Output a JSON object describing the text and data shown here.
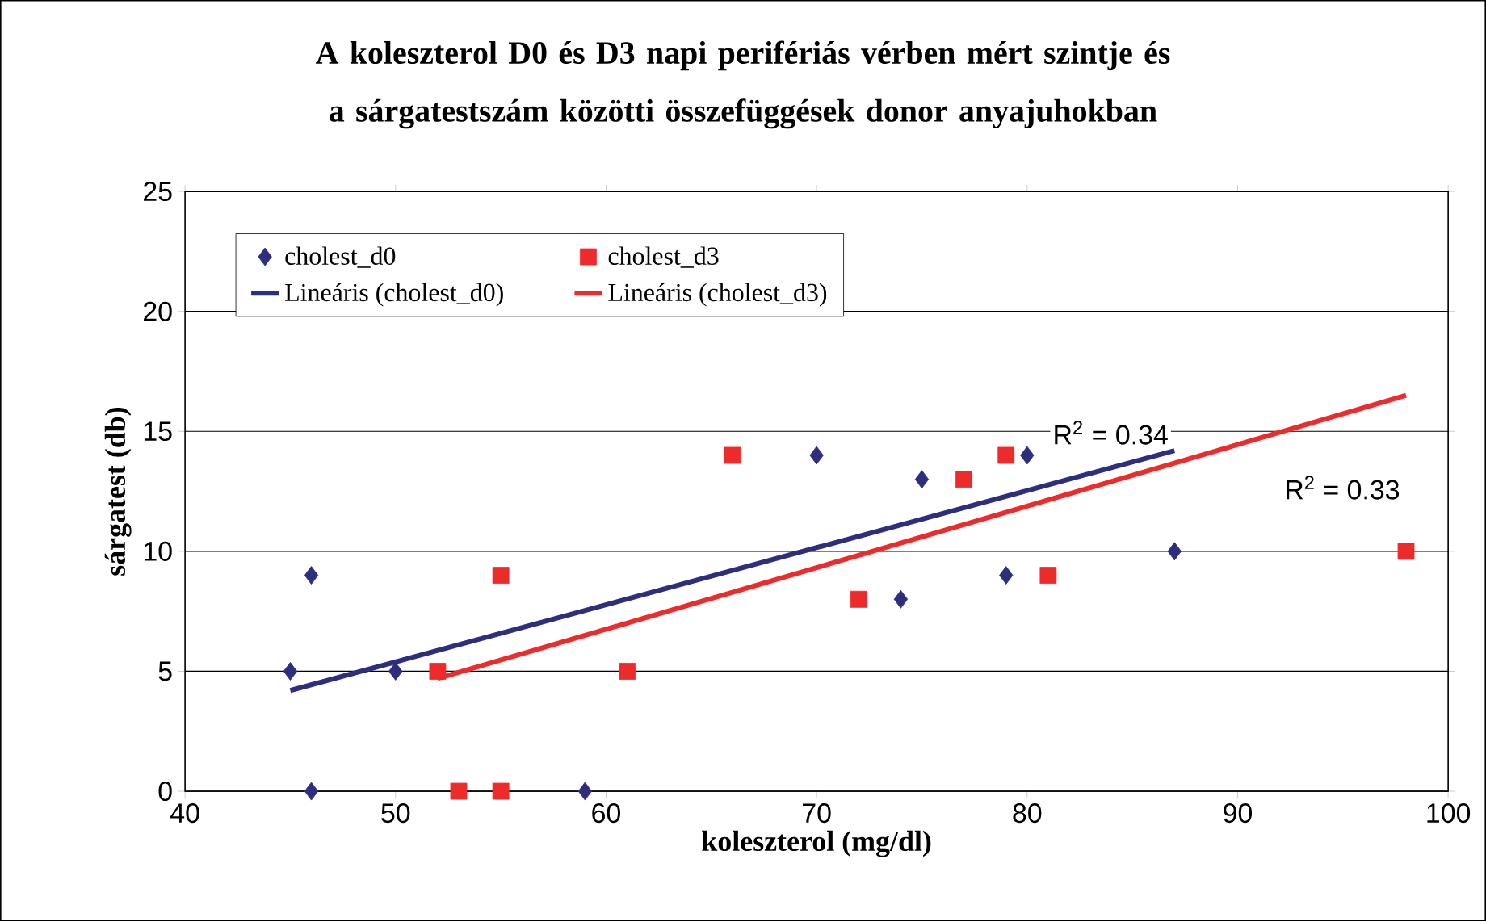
{
  "chart_data": {
    "type": "scatter",
    "title": "A koleszterol D0 és D3 napi perifériás vérben mért szintje és a sárgatestszám közötti összefüggések donor anyajuhokban",
    "xlabel": "koleszterol (mg/dl)",
    "ylabel": "sárgatest (db)",
    "xlim": [
      40,
      100
    ],
    "xticks": [
      40,
      50,
      60,
      70,
      80,
      90,
      100
    ],
    "ylim": [
      0,
      25
    ],
    "yticks": [
      0,
      5,
      10,
      15,
      20,
      25
    ],
    "grid": "y",
    "legend": "top left",
    "series": [
      {
        "name": "cholest_d0",
        "marker": "diamond",
        "color": "#2e2e7f",
        "x": [
          45,
          46,
          46,
          50,
          59,
          70,
          74,
          75,
          79,
          80,
          87
        ],
        "values": [
          5,
          9,
          0,
          5,
          0,
          14,
          8,
          13,
          9,
          14,
          10
        ]
      },
      {
        "name": "cholest_d3",
        "marker": "square",
        "color": "#ee2b2b",
        "x": [
          52,
          53,
          55,
          55,
          61,
          66,
          72,
          77,
          79,
          81,
          98
        ],
        "values": [
          5,
          0,
          0,
          9,
          5,
          14,
          8,
          13,
          14,
          9,
          10
        ]
      },
      {
        "name": "Lineáris (cholest_d0)",
        "type": "line",
        "marker": "none",
        "color": "#2e2e7f",
        "x": [
          45,
          87
        ],
        "values": [
          4.2,
          14.2
        ]
      },
      {
        "name": "Lineáris (cholest_d3)",
        "type": "line",
        "marker": "none",
        "color": "#ee2b2b",
        "x": [
          52,
          98
        ],
        "values": [
          4.7,
          16.5
        ]
      }
    ],
    "annotations": [
      "R$^{2}$ = 0.34",
      "R$^{2}$ = 0.33"
    ]
  }
}
